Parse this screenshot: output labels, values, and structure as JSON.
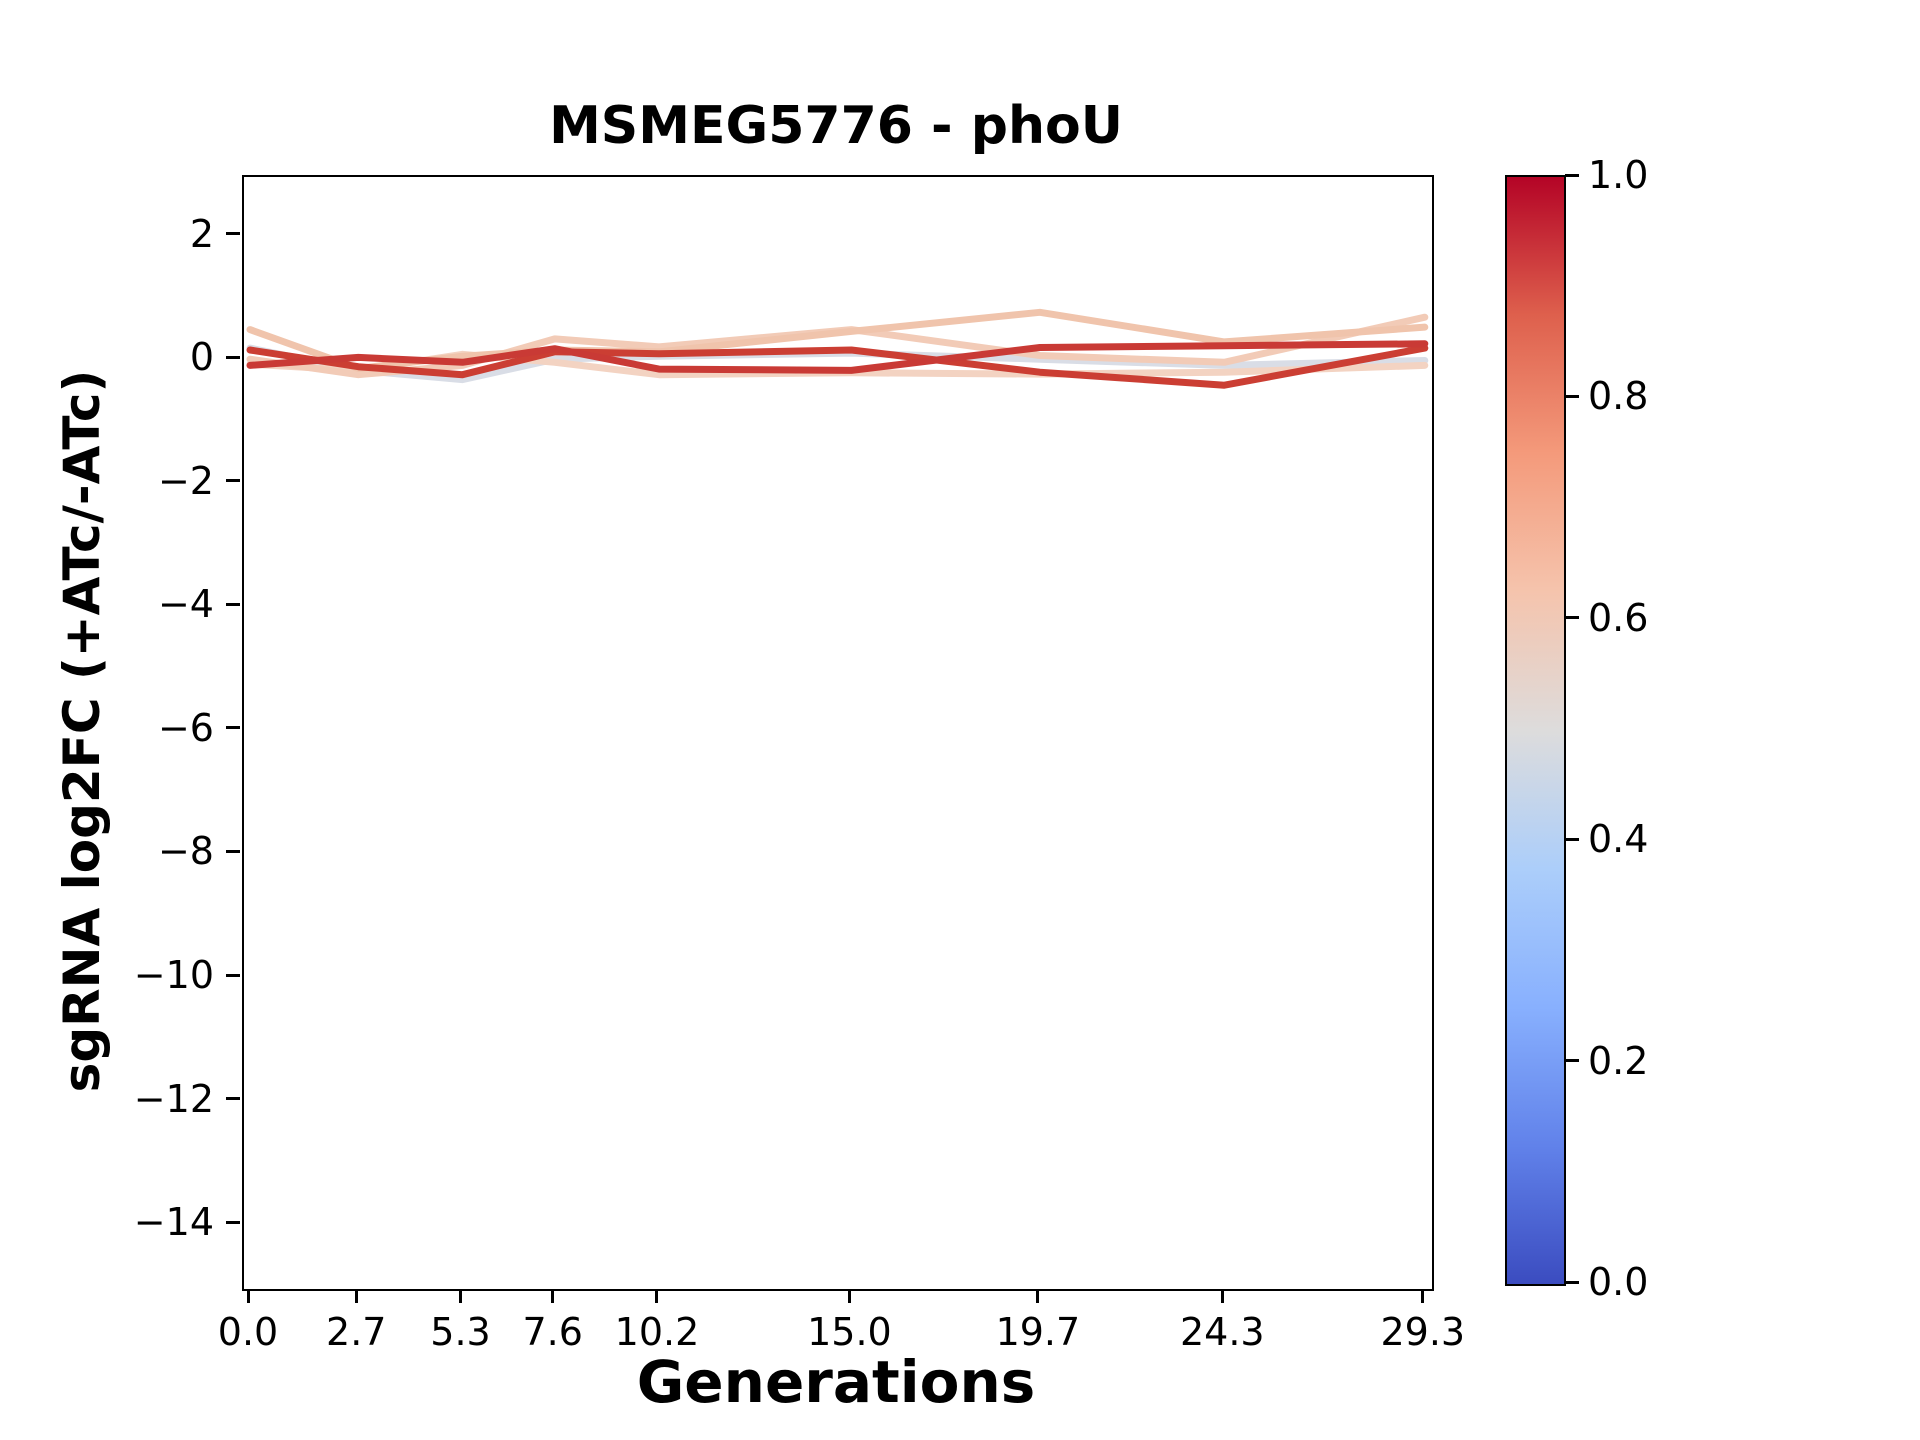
{
  "chart_data": {
    "type": "line",
    "title": "MSMEG5776 - phoU",
    "xlabel": "Generations",
    "ylabel": "sgRNA log2FC (+ATc/-ATc)",
    "x": [
      0.0,
      2.7,
      5.3,
      7.6,
      10.2,
      15.0,
      19.7,
      24.3,
      29.3
    ],
    "x_tick_labels": [
      "0.0",
      "2.7",
      "5.3",
      "7.6",
      "10.2",
      "15.0",
      "19.7",
      "24.3",
      "29.3"
    ],
    "y_ticks": [
      2,
      0,
      -2,
      -4,
      -6,
      -8,
      -10,
      -12,
      -14
    ],
    "y_tick_labels": [
      "2",
      "0",
      "−2",
      "−4",
      "−6",
      "−8",
      "−10",
      "−12",
      "−14"
    ],
    "xlim": [
      -0.15,
      29.48
    ],
    "ylim": [
      -15.05,
      2.95
    ],
    "grid": false,
    "line_width": 7,
    "series": [
      {
        "name": "series_1",
        "colorbar_value": 0.44,
        "color": "#d9dde6",
        "values": [
          0.18,
          -0.18,
          -0.33,
          0.0,
          0.05,
          0.1,
          0.0,
          -0.1,
          -0.02
        ]
      },
      {
        "name": "series_2",
        "colorbar_value": 0.57,
        "color": "#f3d3c2",
        "values": [
          -0.08,
          -0.18,
          0.08,
          -0.05,
          -0.25,
          -0.22,
          -0.24,
          -0.21,
          -0.1
        ]
      },
      {
        "name": "series_3",
        "colorbar_value": 0.6,
        "color": "#f2cbb7",
        "values": [
          0.0,
          -0.25,
          -0.1,
          0.33,
          0.2,
          0.48,
          0.06,
          -0.05,
          0.68
        ]
      },
      {
        "name": "series_4",
        "colorbar_value": 0.62,
        "color": "#f0c4ac",
        "values": [
          0.48,
          -0.15,
          0.05,
          0.15,
          0.12,
          0.45,
          0.76,
          0.28,
          0.52
        ]
      },
      {
        "name": "series_5",
        "colorbar_value": 0.93,
        "color": "#cb3e33",
        "values": [
          0.15,
          -0.12,
          -0.25,
          0.12,
          0.09,
          0.15,
          -0.21,
          -0.42,
          0.18
        ]
      },
      {
        "name": "series_6",
        "colorbar_value": 0.95,
        "color": "#c93a35",
        "values": [
          -0.1,
          0.03,
          -0.05,
          0.17,
          -0.16,
          -0.18,
          0.19,
          0.22,
          0.25
        ]
      }
    ],
    "colorbar": {
      "colormap": "coolwarm",
      "range": [
        0.0,
        1.0
      ],
      "tick_labels": [
        "1.0",
        "0.8",
        "0.6",
        "0.4",
        "0.2",
        "0.0"
      ],
      "gradient_stops": [
        {
          "value": 1.0,
          "color": "#b40426"
        },
        {
          "value": 0.875,
          "color": "#de604d"
        },
        {
          "value": 0.75,
          "color": "#f49a7b"
        },
        {
          "value": 0.625,
          "color": "#f5c4ad"
        },
        {
          "value": 0.5,
          "color": "#dddcdc"
        },
        {
          "value": 0.375,
          "color": "#accefa"
        },
        {
          "value": 0.25,
          "color": "#88b0fe"
        },
        {
          "value": 0.125,
          "color": "#6182ea"
        },
        {
          "value": 0.0,
          "color": "#3b4cc0"
        }
      ]
    },
    "axis_color": "#000000",
    "background_color": "#ffffff"
  }
}
